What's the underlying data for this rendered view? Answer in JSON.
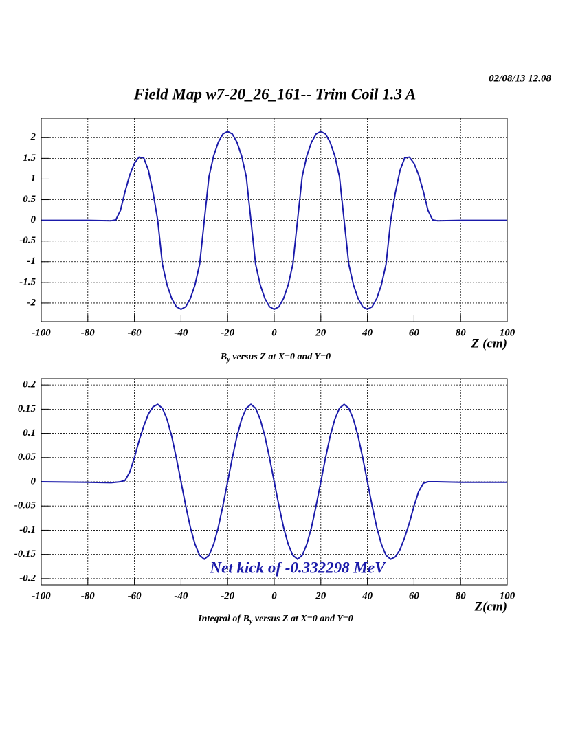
{
  "header": {
    "date": "02/08/13   12.08",
    "title": "Field Map w7-20_26_161-- Trim Coil 1.3 A"
  },
  "chart_data": [
    {
      "type": "line",
      "xlabel": "Z (cm)",
      "caption": [
        "B",
        "y",
        " versus Z at X=0 and Y=0"
      ],
      "x": [
        -100,
        -80,
        -70,
        -68,
        -66,
        -64,
        -62,
        -60,
        -58,
        -56,
        -54,
        -52,
        -50,
        -48,
        -46,
        -44,
        -42,
        -40,
        -38,
        -36,
        -34,
        -32,
        -30,
        -28,
        -26,
        -24,
        -22,
        -20,
        -18,
        -16,
        -14,
        -12,
        -10,
        -8,
        -6,
        -4,
        -2,
        0,
        2,
        4,
        6,
        8,
        10,
        12,
        14,
        16,
        18,
        20,
        22,
        24,
        26,
        28,
        30,
        32,
        34,
        36,
        38,
        40,
        42,
        44,
        46,
        48,
        50,
        52,
        54,
        56,
        58,
        60,
        62,
        64,
        66,
        68,
        70,
        80,
        100
      ],
      "series": [
        {
          "color": "#1a1aaa",
          "values": [
            0,
            0,
            -0.01,
            0.01,
            0.24,
            0.7,
            1.1,
            1.38,
            1.53,
            1.51,
            1.21,
            0.67,
            0,
            -1.06,
            -1.56,
            -1.89,
            -2.09,
            -2.15,
            -2.09,
            -1.89,
            -1.56,
            -1.06,
            0,
            1.06,
            1.56,
            1.89,
            2.09,
            2.15,
            2.09,
            1.89,
            1.56,
            1.06,
            0,
            -1.06,
            -1.56,
            -1.89,
            -2.09,
            -2.15,
            -2.09,
            -1.89,
            -1.56,
            -1.06,
            0,
            1.06,
            1.56,
            1.89,
            2.09,
            2.15,
            2.09,
            1.89,
            1.56,
            1.06,
            0,
            -1.06,
            -1.56,
            -1.89,
            -2.09,
            -2.15,
            -2.09,
            -1.89,
            -1.56,
            -1.06,
            0,
            0.67,
            1.21,
            1.51,
            1.53,
            1.38,
            1.1,
            0.7,
            0.24,
            0.01,
            -0.01,
            0,
            0
          ]
        }
      ],
      "xlim": [
        -100,
        100
      ],
      "xticks": [
        -100,
        -80,
        -60,
        -40,
        -20,
        0,
        20,
        40,
        60,
        80,
        100
      ],
      "ylim": [
        -2.45,
        2.47
      ],
      "yticks": [
        -2,
        -1.5,
        -1,
        -0.5,
        0,
        0.5,
        1,
        1.5,
        2
      ],
      "grid": true
    },
    {
      "type": "line",
      "xlabel": "Z(cm)",
      "caption": [
        "Integral of B",
        "y",
        " versus Z at X=0 and Y=0"
      ],
      "annotation": "Net kick of -0.332298 MeV",
      "annotation_color": "#1a1aaa",
      "x": [
        -100,
        -80,
        -70,
        -66,
        -64,
        -62,
        -60,
        -58,
        -56,
        -54,
        -52,
        -50,
        -48,
        -46,
        -44,
        -42,
        -40,
        -38,
        -36,
        -34,
        -32,
        -30,
        -28,
        -26,
        -24,
        -22,
        -20,
        -18,
        -16,
        -14,
        -12,
        -10,
        -8,
        -6,
        -4,
        -2,
        0,
        2,
        4,
        6,
        8,
        10,
        12,
        14,
        16,
        18,
        20,
        22,
        24,
        26,
        28,
        30,
        32,
        34,
        36,
        38,
        40,
        42,
        44,
        46,
        48,
        50,
        52,
        54,
        56,
        58,
        60,
        62,
        64,
        66,
        70,
        80,
        100
      ],
      "series": [
        {
          "color": "#1a1aaa",
          "values": [
            0,
            -0.001,
            -0.002,
            0,
            0.003,
            0.02,
            0.05,
            0.085,
            0.115,
            0.14,
            0.155,
            0.16,
            0.152,
            0.129,
            0.094,
            0.049,
            0,
            -0.049,
            -0.094,
            -0.129,
            -0.152,
            -0.16,
            -0.152,
            -0.129,
            -0.094,
            -0.049,
            0,
            0.049,
            0.094,
            0.129,
            0.152,
            0.16,
            0.152,
            0.129,
            0.094,
            0.049,
            0,
            -0.049,
            -0.094,
            -0.129,
            -0.152,
            -0.16,
            -0.152,
            -0.129,
            -0.094,
            -0.049,
            0,
            0.049,
            0.094,
            0.129,
            0.152,
            0.16,
            0.152,
            0.129,
            0.094,
            0.049,
            0,
            -0.049,
            -0.094,
            -0.129,
            -0.152,
            -0.16,
            -0.155,
            -0.14,
            -0.115,
            -0.085,
            -0.05,
            -0.02,
            -0.003,
            0,
            0,
            -0.001,
            -0.001
          ]
        }
      ],
      "xlim": [
        -100,
        100
      ],
      "xticks": [
        -100,
        -80,
        -60,
        -40,
        -20,
        0,
        20,
        40,
        60,
        80,
        100
      ],
      "ylim": [
        -0.213,
        0.213
      ],
      "yticks": [
        -0.2,
        -0.15,
        -0.1,
        -0.05,
        0,
        0.05,
        0.1,
        0.15,
        0.2
      ],
      "grid": true
    }
  ]
}
